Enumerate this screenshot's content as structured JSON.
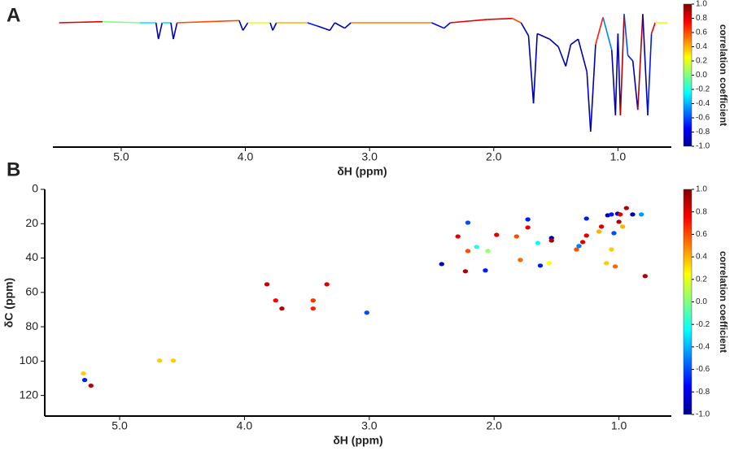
{
  "chart_data": [
    {
      "type": "line",
      "panel_label": "A",
      "x_label": "δH (ppm)",
      "xlim": [
        5.55,
        0.57
      ],
      "xticks": [
        {
          "value": 5,
          "label": "5.0"
        },
        {
          "value": 4,
          "label": "4.0"
        },
        {
          "value": 3,
          "label": "3.0"
        },
        {
          "value": 2,
          "label": "2.0"
        },
        {
          "value": 1,
          "label": "1.0"
        }
      ],
      "ylim": [
        -1,
        0.15
      ],
      "x": [
        5.5,
        5.15,
        4.85,
        4.72,
        4.7,
        4.67,
        4.6,
        4.58,
        4.55,
        4.05,
        4.02,
        3.98,
        3.8,
        3.78,
        3.75,
        3.5,
        3.42,
        3.32,
        3.28,
        3.2,
        3.15,
        2.5,
        2.4,
        2.35,
        2.05,
        1.85,
        1.78,
        1.72,
        1.68,
        1.65,
        1.55,
        1.48,
        1.42,
        1.38,
        1.32,
        1.25,
        1.22,
        1.18,
        1.12,
        1.05,
        1.02,
        1.0,
        0.98,
        0.95,
        0.92,
        0.88,
        0.84,
        0.8,
        0.76,
        0.73,
        0.7,
        0.6
      ],
      "y": [
        0,
        0.01,
        0,
        0,
        -0.15,
        0,
        0,
        -0.15,
        0,
        0.02,
        -0.07,
        0,
        0,
        -0.07,
        0,
        0,
        -0.03,
        -0.07,
        0,
        -0.05,
        0,
        0,
        -0.05,
        0,
        0.03,
        0.04,
        0,
        -0.12,
        -0.74,
        -0.1,
        -0.15,
        -0.22,
        -0.4,
        -0.2,
        -0.15,
        -0.45,
        -1.0,
        -0.2,
        0.05,
        -0.25,
        -0.85,
        -0.1,
        -0.85,
        0.08,
        -0.3,
        -0.35,
        -0.8,
        0.08,
        -0.85,
        -0.1,
        0,
        0
      ],
      "correlation": [
        0.1,
        0.8,
        0,
        -0.3,
        -0.9,
        -0.9,
        -0.3,
        -0.9,
        -0.9,
        0.6,
        -0.9,
        -0.9,
        0.2,
        -0.9,
        -0.9,
        0.4,
        -0.7,
        -0.9,
        -0.9,
        -0.9,
        -0.9,
        0.5,
        -0.8,
        -0.8,
        0.8,
        0.8,
        0.6,
        -0.9,
        -0.9,
        -0.9,
        -0.9,
        -0.9,
        -0.9,
        -0.9,
        -0.9,
        -0.9,
        -0.9,
        -0.9,
        0.7,
        -0.5,
        -0.9,
        -0.9,
        -0.9,
        0.9,
        -0.6,
        -0.7,
        -0.9,
        0.9,
        -0.9,
        -0.7,
        0.8,
        0.2
      ],
      "colorbar": {
        "label": "correlation coefficient",
        "colormap": "jet",
        "lim": [
          -1,
          1
        ],
        "ticks": [
          {
            "value": 1,
            "label": "1.0"
          },
          0.8,
          0.6,
          0.4,
          0.2,
          {
            "value": 0,
            "label": "0.0"
          },
          -0.2,
          -0.4,
          -0.6,
          -0.8,
          {
            "value": -1,
            "label": "-1.0"
          }
        ]
      }
    },
    {
      "type": "scatter",
      "panel_label": "B",
      "x_label": "δH (ppm)",
      "y_label": "δC (ppm)",
      "xlim": [
        5.6,
        0.58
      ],
      "xticks": [
        {
          "value": 5,
          "label": "5.0"
        },
        {
          "value": 4,
          "label": "4.0"
        },
        {
          "value": 3,
          "label": "3.0"
        },
        {
          "value": 2,
          "label": "2.0"
        },
        {
          "value": 1,
          "label": "1.0"
        }
      ],
      "ylim": [
        0,
        132
      ],
      "y_inverted": true,
      "yticks": [
        0,
        20,
        40,
        60,
        80,
        100,
        120
      ],
      "x": [
        5.29,
        5.28,
        5.23,
        4.68,
        4.57,
        3.82,
        3.75,
        3.7,
        3.45,
        3.45,
        3.34,
        3.02,
        2.42,
        2.29,
        2.21,
        2.21,
        2.23,
        2.14,
        2.07,
        2.05,
        1.98,
        1.82,
        1.79,
        1.73,
        1.73,
        1.65,
        1.63,
        1.56,
        1.54,
        1.54,
        1.34,
        1.32,
        1.29,
        1.26,
        1.26,
        1.16,
        1.14,
        1.1,
        1.09,
        1.06,
        1.06,
        1.04,
        1.03,
        1.01,
        1.0,
        0.99,
        0.97,
        0.94,
        0.89,
        0.82,
        0.79
      ],
      "y": [
        107.2,
        111,
        114.3,
        99.7,
        99.7,
        55.3,
        64.7,
        69.4,
        64.7,
        69.4,
        55.3,
        71.8,
        43.5,
        27.4,
        19.4,
        35.9,
        47.7,
        33.5,
        47.2,
        35.9,
        26.5,
        27.4,
        41.1,
        17.5,
        22.2,
        31.2,
        44.4,
        43,
        28.3,
        29.8,
        35,
        33,
        30.7,
        17,
        26.9,
        24.6,
        21.7,
        43,
        15.1,
        35,
        14.6,
        25.5,
        44.9,
        14.2,
        18.9,
        14.6,
        21.7,
        10.9,
        14.6,
        14.6,
        50.5
      ],
      "correlation": [
        0.35,
        -0.7,
        0.9,
        0.35,
        0.35,
        0.85,
        0.75,
        0.9,
        0.65,
        0.7,
        0.8,
        -0.6,
        -0.85,
        0.8,
        -0.6,
        0.6,
        0.9,
        -0.2,
        -0.7,
        0.05,
        0.8,
        0.6,
        0.55,
        -0.7,
        0.8,
        -0.25,
        -0.7,
        0.25,
        -0.9,
        0.9,
        0.6,
        -0.5,
        0.8,
        -0.7,
        0.8,
        0.4,
        0.8,
        0.35,
        -0.9,
        0.35,
        -0.7,
        -0.6,
        0.55,
        -0.9,
        0.9,
        0.8,
        0.4,
        0.9,
        -0.9,
        -0.45,
        0.9
      ],
      "colorbar": {
        "label": "correlation coefficient",
        "colormap": "jet",
        "lim": [
          -1,
          1
        ],
        "ticks": [
          {
            "value": 1,
            "label": "1.0"
          },
          0.8,
          0.6,
          0.4,
          0.2,
          {
            "value": 0,
            "label": "0.0"
          },
          -0.2,
          -0.4,
          -0.6,
          -0.8,
          {
            "value": -1,
            "label": "-1.0"
          }
        ]
      }
    }
  ]
}
